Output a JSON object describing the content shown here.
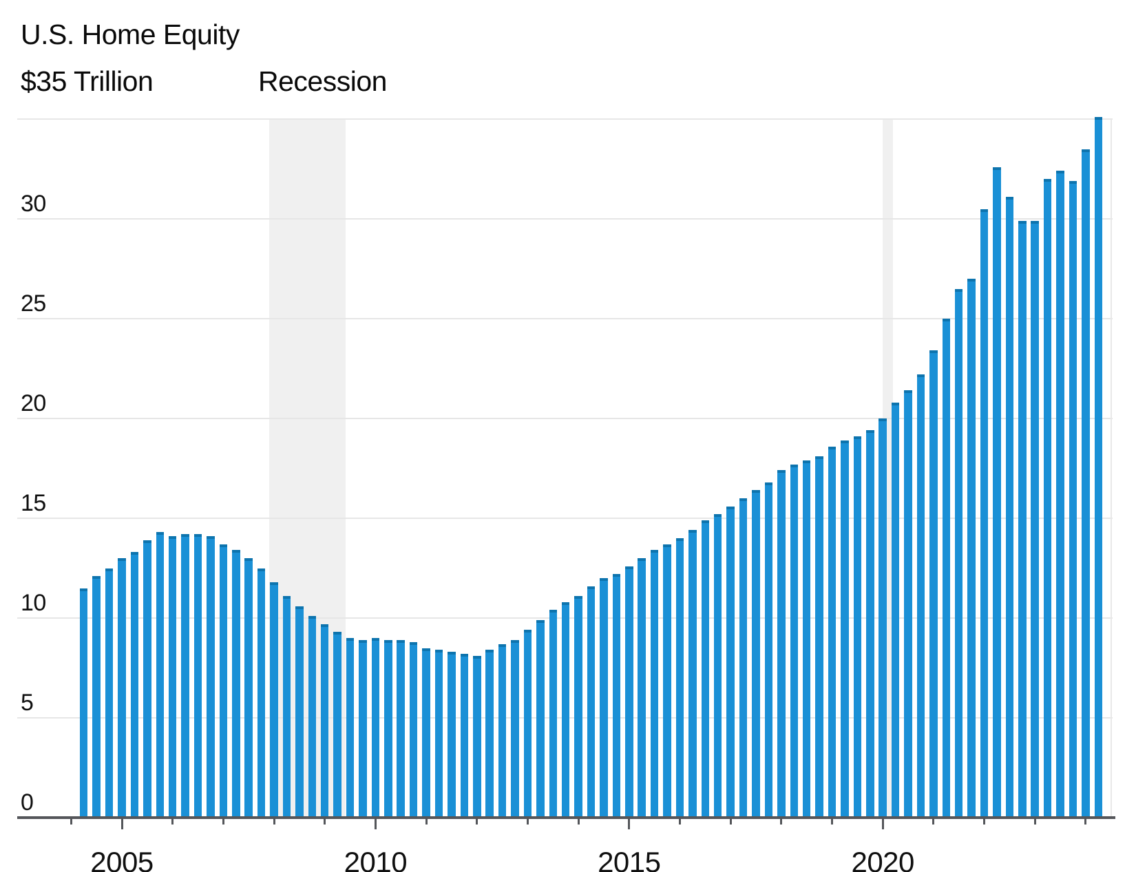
{
  "header": {
    "title": "U.S. Home Equity",
    "y_axis_top_label": "$35 Trillion",
    "recession_label": "Recession"
  },
  "colors": {
    "bar": "#1a90d6",
    "bar_cap": "#0d74ae",
    "gridline": "#e6e6e6",
    "recession_band": "#f0f0f0",
    "axis": "#54565a",
    "text": "#0a0a0a",
    "background": "#ffffff"
  },
  "chart_data": {
    "type": "bar",
    "title": "U.S. Home Equity",
    "ylabel": "$35 Trillion",
    "unit": "trillions of U.S. dollars",
    "ylim": [
      0,
      35
    ],
    "grid": true,
    "y_axis": {
      "tick_values": [
        0,
        5,
        10,
        15,
        20,
        25,
        30
      ],
      "tick_labels": [
        "0",
        "5",
        "10",
        "15",
        "20",
        "25",
        "30"
      ],
      "top_value": 35,
      "top_label": "$35 Trillion"
    },
    "x_axis": {
      "labeled_years": [
        2005,
        2010,
        2015,
        2020
      ],
      "labeled_year_texts": [
        "2005",
        "2010",
        "2015",
        "2020"
      ],
      "minor_tick_year_start": 2004,
      "minor_tick_year_end": 2024
    },
    "recession_bands": [
      {
        "label": "Recession",
        "period": "Dec 2007 - Jun 2009",
        "start_t": 2007.9,
        "end_t": 2009.41
      },
      {
        "label": "Recession",
        "period": "Feb 2020 - Apr 2020",
        "start_t": 2020.0,
        "end_t": 2020.2
      }
    ],
    "x": [
      "2004 Q2",
      "2004 Q3",
      "2004 Q4",
      "2005 Q1",
      "2005 Q2",
      "2005 Q3",
      "2005 Q4",
      "2006 Q1",
      "2006 Q2",
      "2006 Q3",
      "2006 Q4",
      "2007 Q1",
      "2007 Q2",
      "2007 Q3",
      "2007 Q4",
      "2008 Q1",
      "2008 Q2",
      "2008 Q3",
      "2008 Q4",
      "2009 Q1",
      "2009 Q2",
      "2009 Q3",
      "2009 Q4",
      "2010 Q1",
      "2010 Q2",
      "2010 Q3",
      "2010 Q4",
      "2011 Q1",
      "2011 Q2",
      "2011 Q3",
      "2011 Q4",
      "2012 Q1",
      "2012 Q2",
      "2012 Q3",
      "2012 Q4",
      "2013 Q1",
      "2013 Q2",
      "2013 Q3",
      "2013 Q4",
      "2014 Q1",
      "2014 Q2",
      "2014 Q3",
      "2014 Q4",
      "2015 Q1",
      "2015 Q2",
      "2015 Q3",
      "2015 Q4",
      "2016 Q1",
      "2016 Q2",
      "2016 Q3",
      "2016 Q4",
      "2017 Q1",
      "2017 Q2",
      "2017 Q3",
      "2017 Q4",
      "2018 Q1",
      "2018 Q2",
      "2018 Q3",
      "2018 Q4",
      "2019 Q1",
      "2019 Q2",
      "2019 Q3",
      "2019 Q4",
      "2020 Q1",
      "2020 Q2",
      "2020 Q3",
      "2020 Q4",
      "2021 Q1",
      "2021 Q2",
      "2021 Q3",
      "2021 Q4",
      "2022 Q1",
      "2022 Q2",
      "2022 Q3",
      "2022 Q4",
      "2023 Q1",
      "2023 Q2",
      "2023 Q3",
      "2023 Q4",
      "2024 Q1",
      "2024 Q2"
    ],
    "values": [
      11.5,
      12.1,
      12.5,
      13.0,
      13.3,
      13.9,
      14.3,
      14.1,
      14.2,
      14.2,
      14.1,
      13.7,
      13.4,
      13.0,
      12.5,
      11.8,
      11.1,
      10.6,
      10.1,
      9.7,
      9.3,
      9.0,
      8.9,
      9.0,
      8.9,
      8.9,
      8.8,
      8.5,
      8.4,
      8.3,
      8.2,
      8.1,
      8.4,
      8.7,
      8.9,
      9.4,
      9.9,
      10.4,
      10.8,
      11.1,
      11.6,
      12.0,
      12.2,
      12.6,
      13.0,
      13.4,
      13.7,
      14.0,
      14.4,
      14.9,
      15.2,
      15.6,
      16.0,
      16.4,
      16.8,
      17.4,
      17.7,
      17.9,
      18.1,
      18.6,
      18.9,
      19.1,
      19.4,
      20.0,
      20.8,
      21.4,
      22.2,
      23.4,
      25.0,
      26.5,
      27.0,
      30.5,
      32.6,
      31.1,
      29.9,
      29.9,
      32.0,
      32.4,
      31.9,
      33.5,
      35.1
    ]
  }
}
